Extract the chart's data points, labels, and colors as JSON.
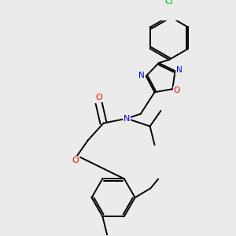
{
  "background_color": "#ebebeb",
  "bond_color": "#000000",
  "atom_colors": {
    "N": "#0000ff",
    "O": "#ff0000",
    "Cl": "#00bb00",
    "C": "#000000"
  },
  "figsize": [
    3.0,
    3.0
  ],
  "dpi": 100
}
